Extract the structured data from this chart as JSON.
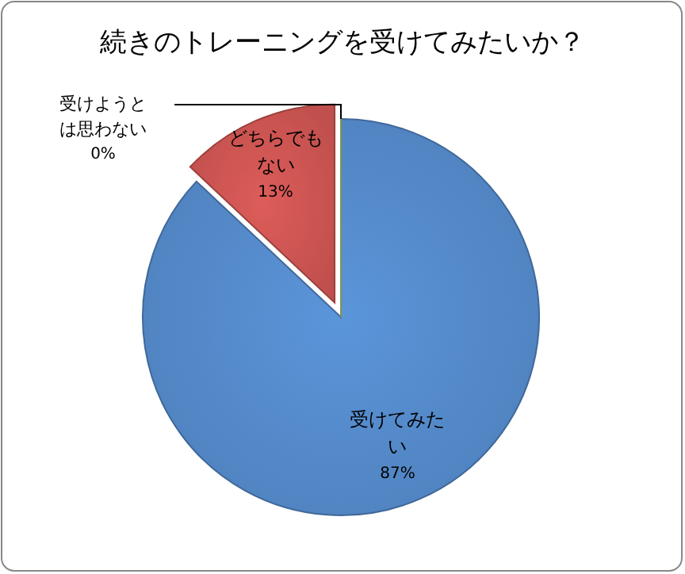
{
  "chart_data": {
    "type": "pie",
    "title": "続きのトレーニングを受けてみたいか？",
    "categories": [
      "受けてみたい",
      "どちらでもない",
      "受けようとは思わない"
    ],
    "values": [
      87,
      13,
      0
    ],
    "value_labels": [
      "87%",
      "13%",
      "0%"
    ],
    "colors": [
      "#4f81bd",
      "#c0504d",
      "#9bbb59"
    ]
  }
}
